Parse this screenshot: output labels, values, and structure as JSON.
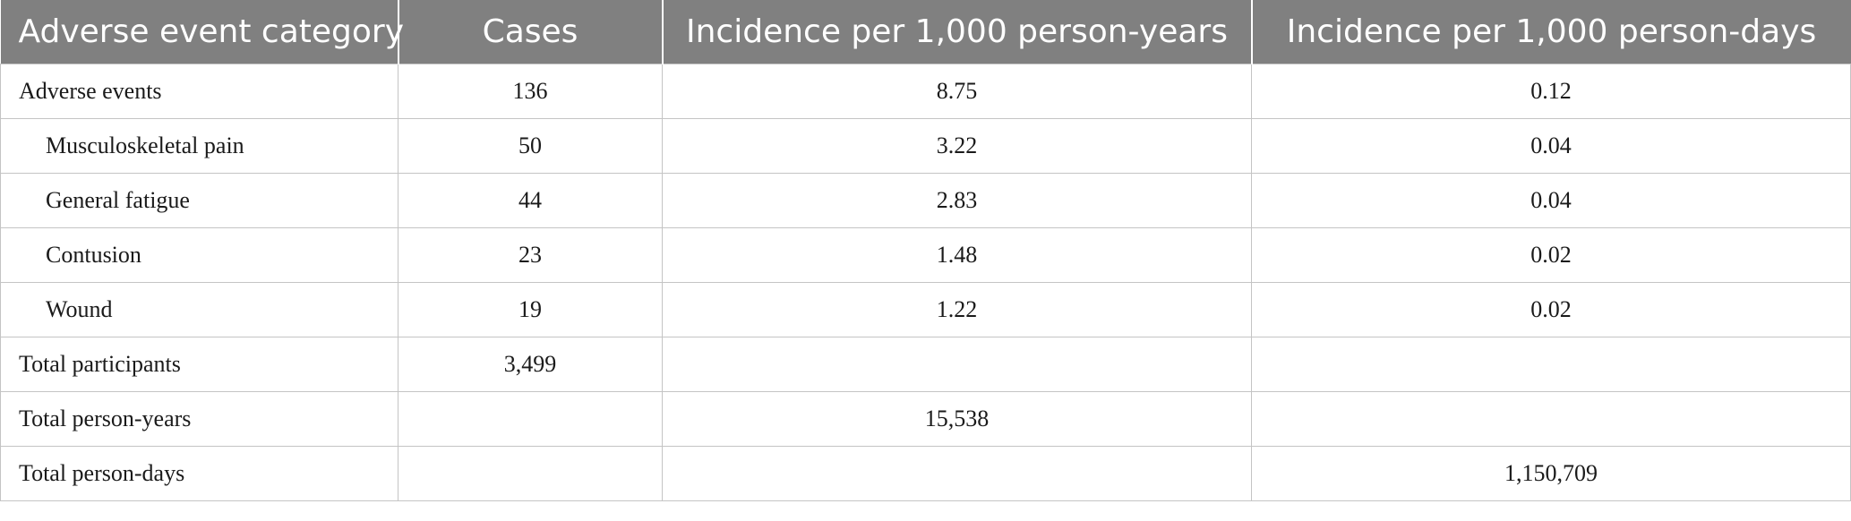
{
  "table": {
    "headers": [
      "Adverse event category",
      "Cases",
      "Incidence per 1,000 person-years",
      "Incidence per 1,000 person-days"
    ],
    "rows": [
      {
        "label": "Adverse events",
        "cases": "136",
        "per_years": "8.75",
        "per_days": "0.12",
        "indent": false
      },
      {
        "label": "Musculoskeletal pain",
        "cases": "50",
        "per_years": "3.22",
        "per_days": "0.04",
        "indent": true
      },
      {
        "label": "General fatigue",
        "cases": "44",
        "per_years": "2.83",
        "per_days": "0.04",
        "indent": true
      },
      {
        "label": "Contusion",
        "cases": "23",
        "per_years": "1.48",
        "per_days": "0.02",
        "indent": true
      },
      {
        "label": "Wound",
        "cases": "19",
        "per_years": "1.22",
        "per_days": "0.02",
        "indent": true
      },
      {
        "label": "Total participants",
        "cases": "3,499",
        "per_years": "",
        "per_days": "",
        "indent": false
      },
      {
        "label": "Total person-years",
        "cases": "",
        "per_years": "15,538",
        "per_days": "",
        "indent": false
      },
      {
        "label": "Total person-days",
        "cases": "",
        "per_years": "",
        "per_days": "1,150,709",
        "indent": false
      }
    ]
  },
  "colors": {
    "header_bg": "#808080",
    "header_text": "#ffffff",
    "grid_line": "#c4c4c4"
  }
}
